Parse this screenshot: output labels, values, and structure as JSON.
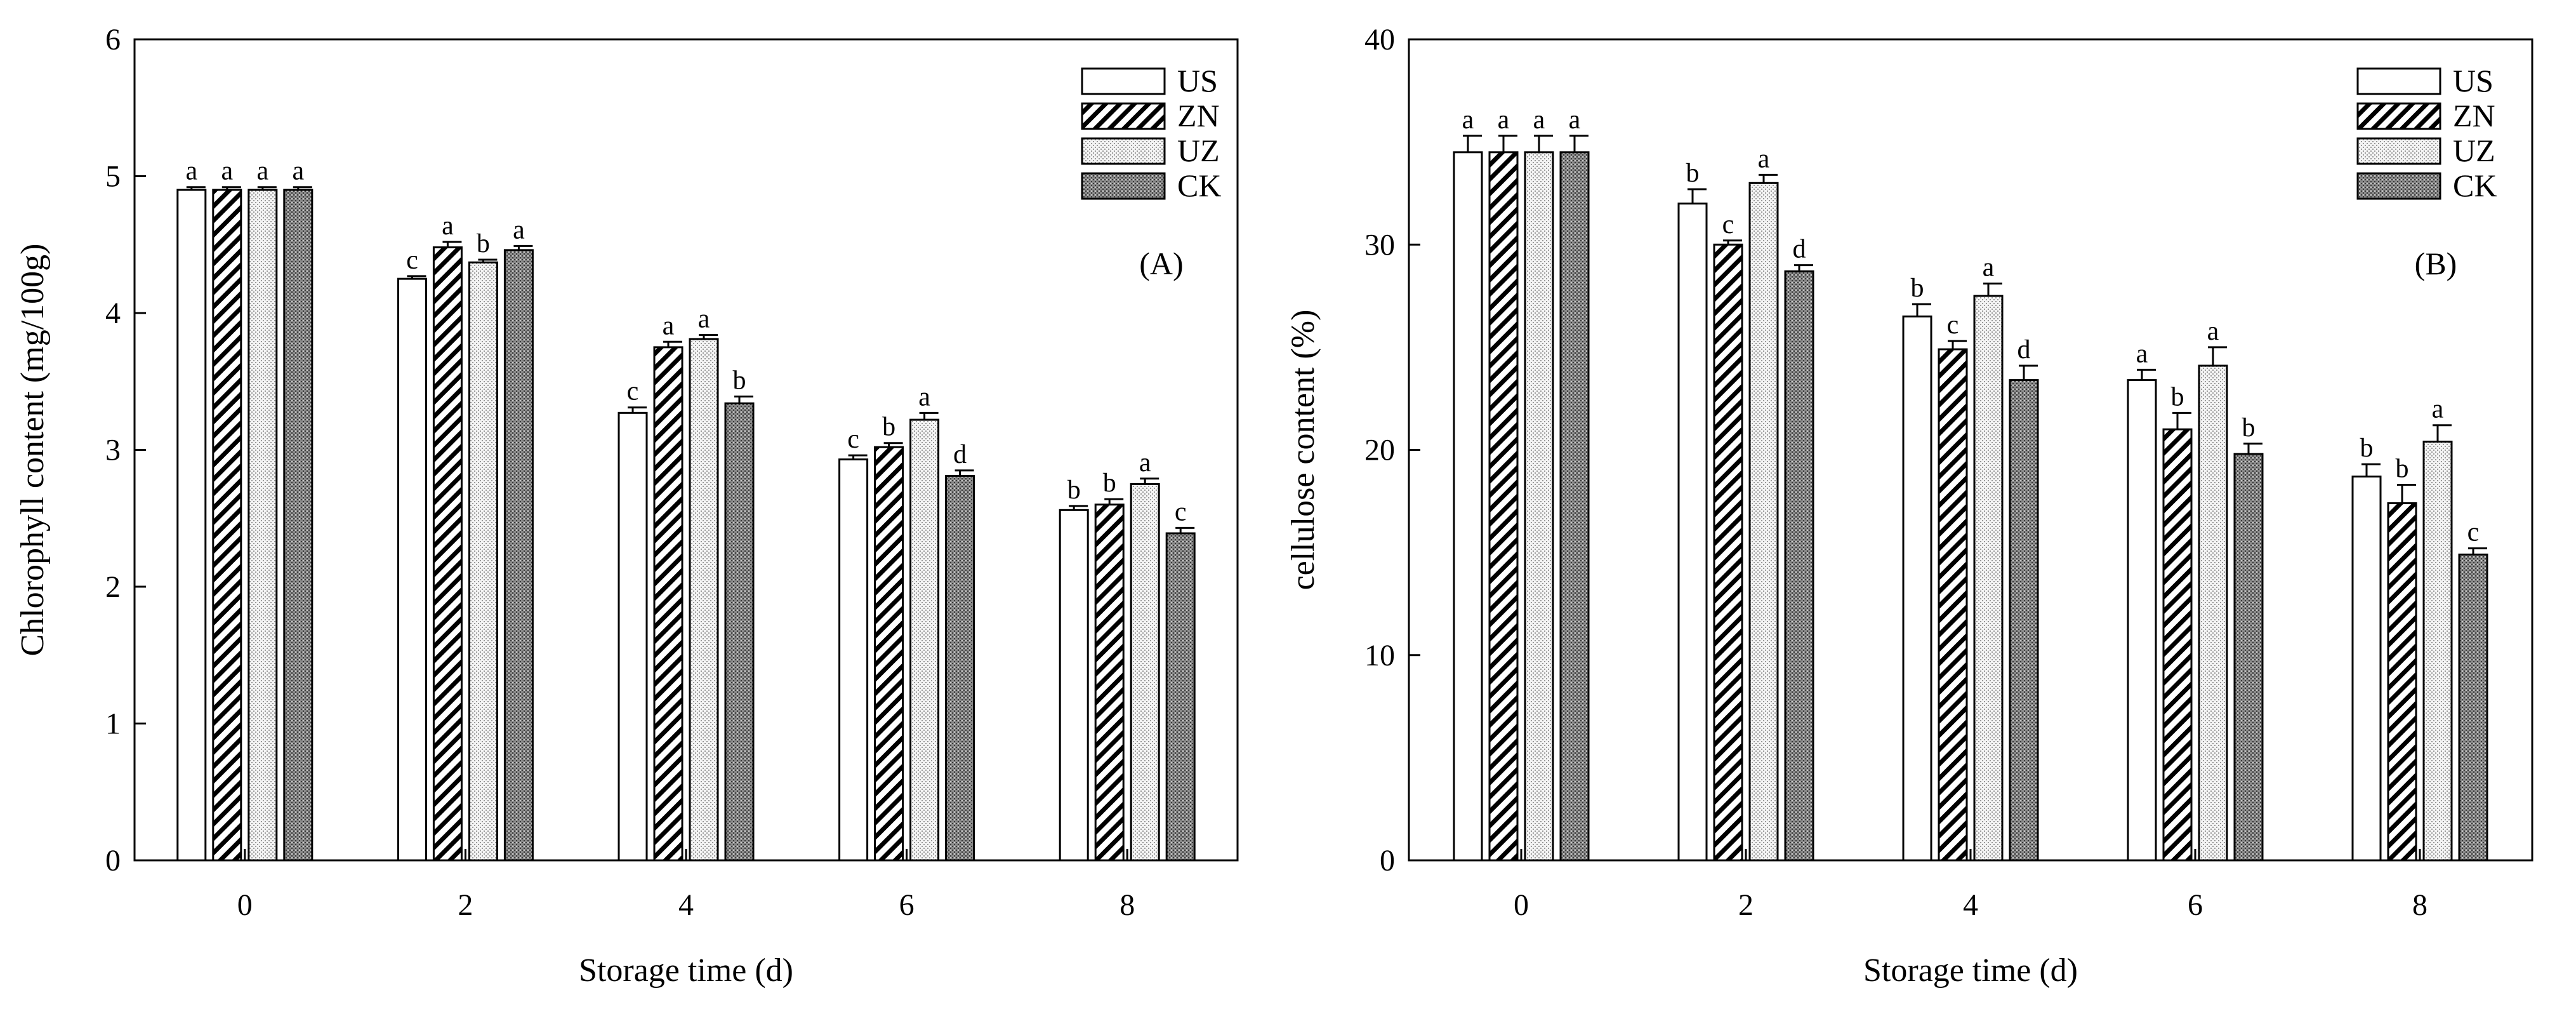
{
  "chart_data": [
    {
      "type": "bar",
      "panel_label": "(A)",
      "xlabel": "Storage time (d)",
      "ylabel": "Chlorophyll content (mg/100g)",
      "ylim": [
        0,
        6
      ],
      "yticks": [
        "0",
        "1",
        "2",
        "3",
        "4",
        "5",
        "6"
      ],
      "categories": [
        "0",
        "2",
        "4",
        "6",
        "8"
      ],
      "legend_position": "top-right",
      "grid": false,
      "series": [
        {
          "name": "US",
          "pattern": "white",
          "values": [
            4.9,
            4.25,
            3.27,
            2.93,
            2.56
          ],
          "errors": [
            0.02,
            0.02,
            0.04,
            0.03,
            0.03
          ],
          "letters": [
            "a",
            "c",
            "c",
            "c",
            "b"
          ]
        },
        {
          "name": "ZN",
          "pattern": "hatch",
          "values": [
            4.9,
            4.48,
            3.75,
            3.02,
            2.6
          ],
          "errors": [
            0.02,
            0.04,
            0.04,
            0.03,
            0.04
          ],
          "letters": [
            "a",
            "a",
            "a",
            "b",
            "b"
          ]
        },
        {
          "name": "UZ",
          "pattern": "dots",
          "values": [
            4.9,
            4.37,
            3.81,
            3.22,
            2.75
          ],
          "errors": [
            0.02,
            0.02,
            0.03,
            0.05,
            0.04
          ],
          "letters": [
            "a",
            "b",
            "a",
            "a",
            "a"
          ]
        },
        {
          "name": "CK",
          "pattern": "dark",
          "values": [
            4.9,
            4.46,
            3.34,
            2.81,
            2.39
          ],
          "errors": [
            0.02,
            0.03,
            0.05,
            0.04,
            0.04
          ],
          "letters": [
            "a",
            "a",
            "b",
            "d",
            "c"
          ]
        }
      ]
    },
    {
      "type": "bar",
      "panel_label": "(B)",
      "xlabel": "Storage time (d)",
      "ylabel": "cellulose content (%)",
      "ylim": [
        0,
        40
      ],
      "yticks": [
        "0",
        "10",
        "20",
        "30",
        "40"
      ],
      "categories": [
        "0",
        "2",
        "4",
        "6",
        "8"
      ],
      "legend_position": "top-right",
      "grid": false,
      "series": [
        {
          "name": "US",
          "pattern": "white",
          "values": [
            34.5,
            32.0,
            26.5,
            23.4,
            18.7
          ],
          "errors": [
            0.8,
            0.7,
            0.6,
            0.5,
            0.6
          ],
          "letters": [
            "a",
            "b",
            "b",
            "a",
            "b"
          ]
        },
        {
          "name": "ZN",
          "pattern": "hatch",
          "values": [
            34.5,
            30.0,
            24.9,
            21.0,
            17.4
          ],
          "errors": [
            0.8,
            0.2,
            0.4,
            0.8,
            0.9
          ],
          "letters": [
            "a",
            "c",
            "c",
            "b",
            "b"
          ]
        },
        {
          "name": "UZ",
          "pattern": "dots",
          "values": [
            34.5,
            33.0,
            27.5,
            24.1,
            20.4
          ],
          "errors": [
            0.8,
            0.4,
            0.6,
            0.9,
            0.8
          ],
          "letters": [
            "a",
            "a",
            "a",
            "a",
            "a"
          ]
        },
        {
          "name": "CK",
          "pattern": "dark",
          "values": [
            34.5,
            28.7,
            23.4,
            19.8,
            14.9
          ],
          "errors": [
            0.8,
            0.3,
            0.7,
            0.5,
            0.3
          ],
          "letters": [
            "a",
            "d",
            "d",
            "b",
            "c"
          ]
        }
      ]
    }
  ]
}
